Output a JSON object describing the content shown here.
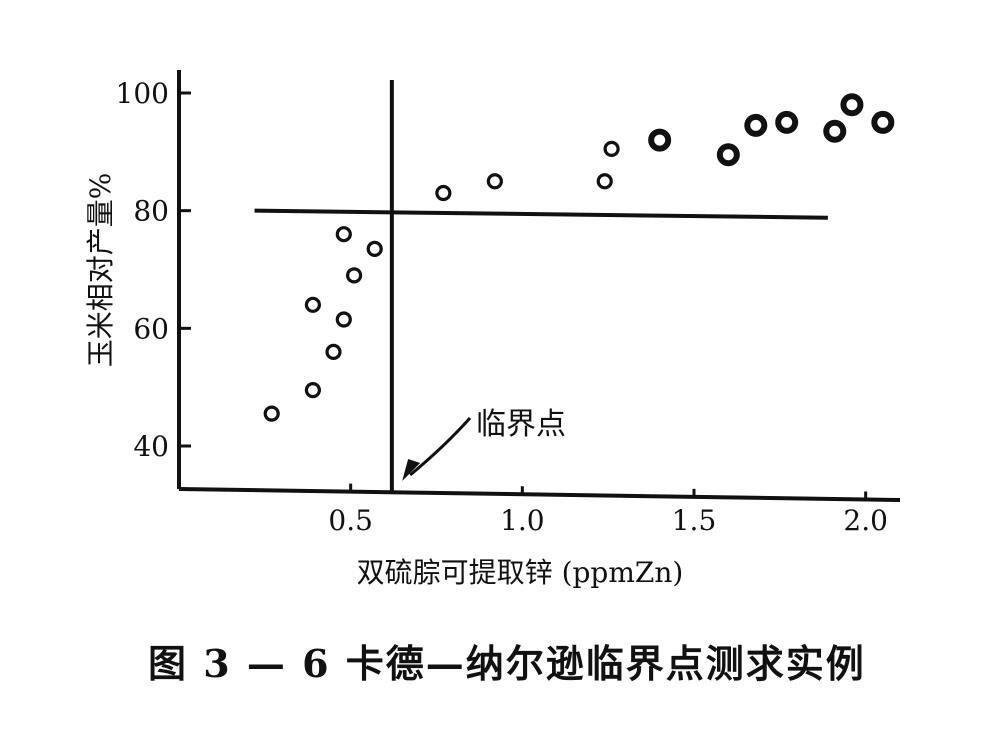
{
  "caption": "图 3 — 6   卡德—纳尔逊临界点测求实例",
  "chart_data": {
    "type": "scatter",
    "title": "",
    "xlabel": "双硫腙可提取锌 (ppmZn)",
    "ylabel": "玉米相对产量%",
    "xlim": [
      0.0,
      2.1
    ],
    "ylim": [
      33,
      103
    ],
    "xticks": [
      0.5,
      1.0,
      1.5,
      2.0
    ],
    "xtick_labels": [
      "0.5",
      "1.0",
      "1.5",
      "2.0"
    ],
    "yticks": [
      40,
      60,
      80,
      100
    ],
    "ytick_labels": [
      "40",
      "60",
      "80",
      "100"
    ],
    "grid": false,
    "series": [
      {
        "marker": "hollow",
        "points": [
          [
            0.27,
            45.5
          ],
          [
            0.39,
            49.5
          ],
          [
            0.45,
            56.0
          ],
          [
            0.39,
            64.0
          ],
          [
            0.48,
            61.5
          ],
          [
            0.48,
            76.0
          ],
          [
            0.51,
            69.0
          ],
          [
            0.57,
            73.5
          ],
          [
            0.77,
            83.0
          ],
          [
            0.92,
            85.0
          ],
          [
            1.24,
            85.0
          ],
          [
            1.26,
            90.5
          ]
        ]
      },
      {
        "marker": "filled",
        "points": [
          [
            1.4,
            92.0
          ],
          [
            1.6,
            89.5
          ],
          [
            1.68,
            94.5
          ],
          [
            1.77,
            95.0
          ],
          [
            1.91,
            93.5
          ],
          [
            1.96,
            98.0
          ],
          [
            2.05,
            95.0
          ]
        ]
      }
    ],
    "reference_lines": {
      "critical_x": 0.62,
      "y_line_start": [
        0.22,
        80.0
      ],
      "y_line_end": [
        1.89,
        78.8
      ]
    },
    "annotation": {
      "text": "临界点",
      "points_to": [
        0.65,
        35.0
      ]
    }
  }
}
